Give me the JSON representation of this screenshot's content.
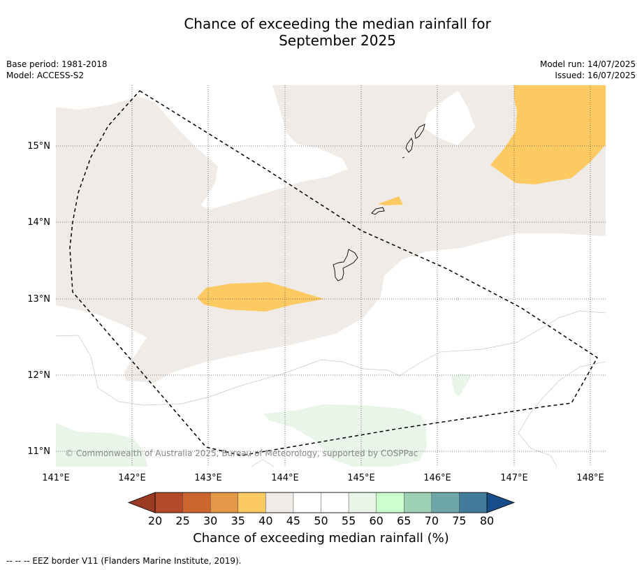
{
  "header": {
    "title_line1": "Chance of exceeding the median rainfall for",
    "title_line2": "September 2025",
    "base_period": "Base period: 1981-2018",
    "model": "Model: ACCESS-S2",
    "model_run": "Model run: 14/07/2025",
    "issued": "Issued: 16/07/2025"
  },
  "map": {
    "lon_ticks": [
      "141°E",
      "142°E",
      "143°E",
      "144°E",
      "145°E",
      "146°E",
      "147°E",
      "148°E"
    ],
    "lat_ticks": [
      "15°N",
      "14°N",
      "13°N",
      "12°N",
      "11°N"
    ],
    "copyright": "© Commonwealth of Australia 2025, Bureau of Meteorology, supported by COSPPac",
    "region_colors": {
      "40-45": "#f0ebe6",
      "35-40": "#fdca61",
      "55-60": "#e9f5e8",
      "45-55": "#ffffff"
    }
  },
  "colorbar": {
    "title": "Chance of exceeding median rainfall (%)",
    "ticks": [
      "20",
      "25",
      "30",
      "35",
      "40",
      "45",
      "50",
      "55",
      "60",
      "65",
      "70",
      "75",
      "80"
    ],
    "colors": [
      "#b34928",
      "#cd6530",
      "#e39848",
      "#fdca61",
      "#f0ebe6",
      "#ffffff",
      "#ffffff",
      "#e9f5e8",
      "#ccffcc",
      "#9ed0b6",
      "#6fa6a8",
      "#417c9c"
    ],
    "low_extend_color": "#9b3c22",
    "high_extend_color": "#174d88"
  },
  "footer": {
    "legend": "--  --  -- EEZ border V11 (Flanders Marine Institute, 2019)."
  }
}
